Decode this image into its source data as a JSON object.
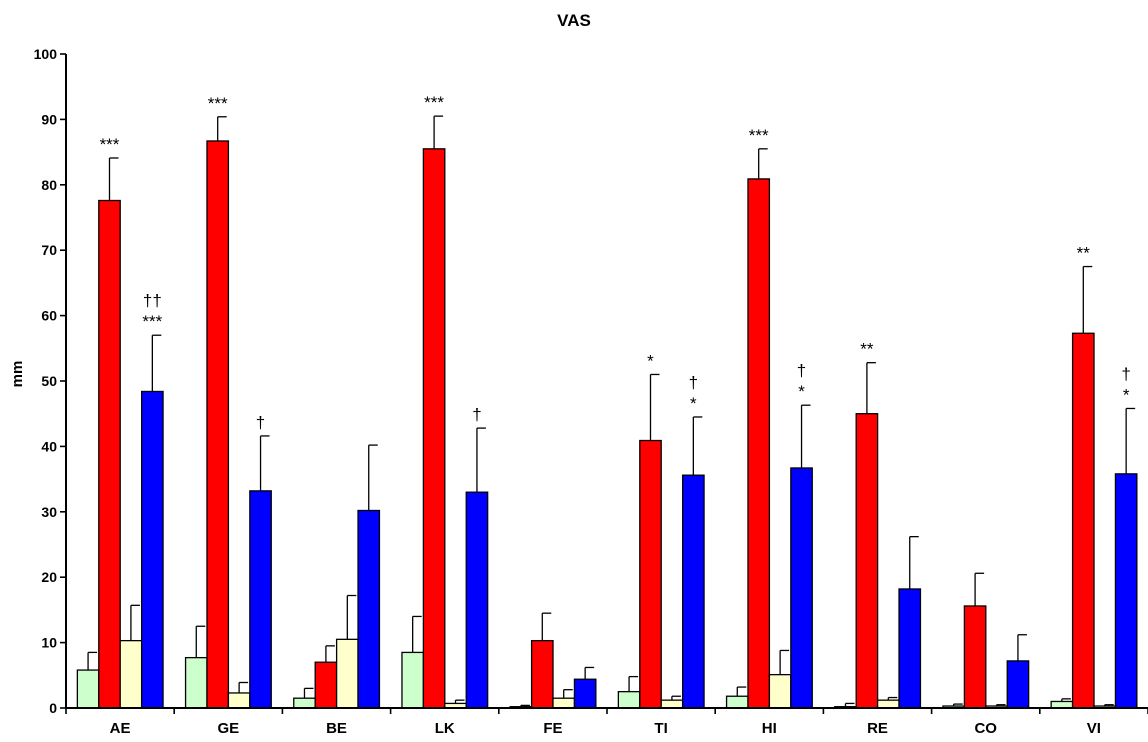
{
  "chart_data": {
    "type": "bar",
    "title": "VAS",
    "xlabel": "",
    "ylabel": "mm",
    "ylim": [
      0,
      100
    ],
    "yticks": [
      0,
      10,
      20,
      30,
      40,
      50,
      60,
      70,
      80,
      90,
      100
    ],
    "grid": false,
    "legend": "none",
    "categories": [
      "AE",
      "GE",
      "BE",
      "LK",
      "FE",
      "TI",
      "HI",
      "RE",
      "CO",
      "VI"
    ],
    "series": [
      {
        "color": "#ccffcc",
        "values": [
          5.8,
          7.7,
          1.5,
          8.5,
          0.2,
          2.5,
          1.8,
          0.2,
          0.3,
          1.0
        ],
        "errors": [
          2.7,
          4.8,
          1.5,
          5.5,
          0.2,
          2.3,
          1.4,
          0.5,
          0.3,
          0.4
        ]
      },
      {
        "color": "#ff0000",
        "values": [
          77.6,
          86.7,
          7.0,
          85.5,
          10.3,
          40.9,
          80.9,
          45.0,
          15.6,
          57.3
        ],
        "errors": [
          6.5,
          3.7,
          2.5,
          5.0,
          4.2,
          10.1,
          4.6,
          7.8,
          5.0,
          10.2
        ]
      },
      {
        "color": "#ffffcc",
        "values": [
          10.3,
          2.3,
          10.5,
          0.7,
          1.5,
          1.2,
          5.1,
          1.2,
          0.3,
          0.3
        ],
        "errors": [
          5.4,
          1.6,
          6.7,
          0.5,
          1.3,
          0.6,
          3.7,
          0.4,
          0.2,
          0.2
        ]
      },
      {
        "color": "#0000ff",
        "values": [
          48.4,
          33.2,
          30.2,
          33.0,
          4.4,
          35.6,
          36.7,
          18.2,
          7.2,
          35.8
        ],
        "errors": [
          8.6,
          8.4,
          10.0,
          9.8,
          1.8,
          8.9,
          9.6,
          8.0,
          4.0,
          10.0
        ]
      }
    ],
    "annotations": [
      {
        "category": "AE",
        "series": 1,
        "lines": [
          "***"
        ]
      },
      {
        "category": "AE",
        "series": 3,
        "lines": [
          "††",
          "***"
        ]
      },
      {
        "category": "GE",
        "series": 1,
        "lines": [
          "***"
        ]
      },
      {
        "category": "GE",
        "series": 3,
        "lines": [
          "†"
        ]
      },
      {
        "category": "LK",
        "series": 1,
        "lines": [
          "***"
        ]
      },
      {
        "category": "LK",
        "series": 3,
        "lines": [
          "†"
        ]
      },
      {
        "category": "TI",
        "series": 1,
        "lines": [
          "*"
        ]
      },
      {
        "category": "TI",
        "series": 3,
        "lines": [
          "†",
          "*"
        ]
      },
      {
        "category": "HI",
        "series": 1,
        "lines": [
          "***"
        ]
      },
      {
        "category": "HI",
        "series": 3,
        "lines": [
          "†",
          "*"
        ]
      },
      {
        "category": "RE",
        "series": 1,
        "lines": [
          "**"
        ]
      },
      {
        "category": "VI",
        "series": 1,
        "lines": [
          "**"
        ]
      },
      {
        "category": "VI",
        "series": 3,
        "lines": [
          "†",
          "*"
        ]
      }
    ]
  }
}
